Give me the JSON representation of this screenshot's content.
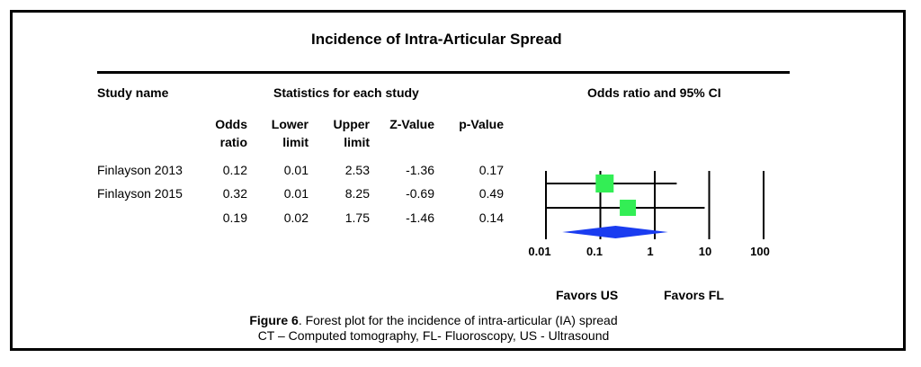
{
  "chart_data": {
    "type": "forest",
    "title": "Incidence of Intra-Articular Spread",
    "header_study": "Study name",
    "header_stats": "Statistics for each study",
    "header_plot": "Odds ratio and 95% CI",
    "columns": [
      [
        "Odds",
        "ratio"
      ],
      [
        "Lower",
        "limit"
      ],
      [
        "Upper",
        "limit"
      ],
      [
        "",
        "Z-Value"
      ],
      [
        "",
        "p-Value"
      ]
    ],
    "rows": [
      {
        "study": "Finlayson 2013",
        "odds_ratio": "0.12",
        "lower": "0.01",
        "upper": "2.53",
        "z": "-1.36",
        "p": "0.17",
        "or": 0.12,
        "lo": 0.01,
        "hi": 2.53,
        "kind": "study"
      },
      {
        "study": "Finlayson 2015",
        "odds_ratio": "0.32",
        "lower": "0.01",
        "upper": "8.25",
        "z": "-0.69",
        "p": "0.49",
        "or": 0.32,
        "lo": 0.01,
        "hi": 8.25,
        "kind": "study"
      },
      {
        "study": "",
        "odds_ratio": "0.19",
        "lower": "0.02",
        "upper": "1.75",
        "z": "-1.46",
        "p": "0.14",
        "or": 0.19,
        "lo": 0.02,
        "hi": 1.75,
        "kind": "summary"
      }
    ],
    "x_scale": "log",
    "x_ticks": [
      "0.01",
      "0.1",
      "1",
      "10",
      "100"
    ],
    "x_tick_values": [
      0.01,
      0.1,
      1,
      10,
      100
    ],
    "favors_left": "Favors US",
    "favors_right": "Favors FL",
    "colors": {
      "study_box": "#33ee55",
      "summary_diamond": "#1a3cf0",
      "lines": "#000000"
    }
  },
  "caption": {
    "figure_label": "Figure 6",
    "line1_rest": ". Forest plot for the incidence of intra-articular (IA) spread",
    "line2": "CT – Computed tomography, FL- Fluoroscopy, US - Ultrasound"
  }
}
